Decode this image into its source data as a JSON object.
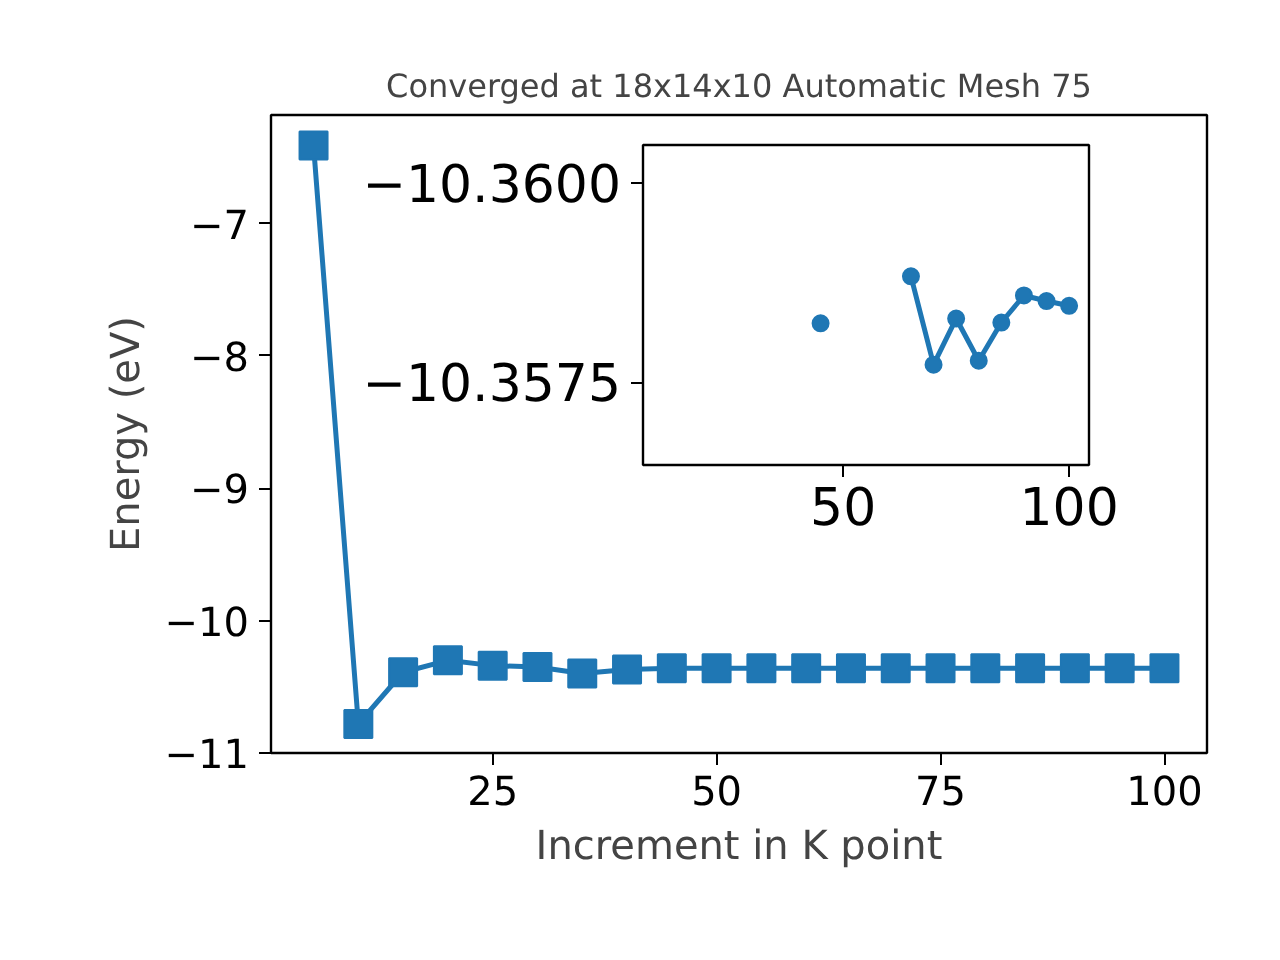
{
  "chart_data": [
    {
      "type": "line",
      "title": "Converged at 18x14x10 Automatic Mesh 75",
      "xlabel": "Increment in K point",
      "ylabel": "Energy (eV)",
      "x": [
        5,
        10,
        15,
        20,
        25,
        30,
        35,
        40,
        45,
        50,
        55,
        60,
        65,
        70,
        75,
        80,
        85,
        90,
        95,
        100
      ],
      "series": [
        {
          "color": "#1f77b4",
          "values": [
            -6.41,
            -10.78,
            -10.39,
            -10.3,
            -10.34,
            -10.35,
            -10.4,
            -10.37,
            -10.36,
            -10.36,
            -10.36,
            -10.36,
            -10.36,
            -10.36,
            -10.36,
            -10.36,
            -10.36,
            -10.36,
            -10.36,
            -10.36
          ]
        }
      ],
      "xlim": [
        0.25,
        104.75
      ],
      "ylim": [
        -11,
        -6.18
      ],
      "xticks": [
        25,
        50,
        75,
        100
      ],
      "yticks": [
        {
          "value": -11,
          "label": "−11"
        },
        {
          "value": -10,
          "label": "−10"
        },
        {
          "value": -9,
          "label": "−9"
        },
        {
          "value": -8,
          "label": "−8"
        },
        {
          "value": -7,
          "label": "−7"
        }
      ],
      "marker": "square",
      "line_style": "solid",
      "grid": false
    },
    {
      "type": "line",
      "x": [
        45,
        50,
        55,
        60,
        65,
        70,
        75,
        80,
        85,
        90,
        95,
        100
      ],
      "series": [
        {
          "color": "#1f77b4",
          "values": [
            -10.35824,
            null,
            null,
            null,
            -10.35883,
            -10.35772,
            -10.3583,
            -10.35777,
            -10.35825,
            -10.35859,
            -10.35852,
            -10.35846
          ]
        }
      ],
      "xlim": [
        5.7,
        104.4
      ],
      "ylim": [
        -10.35646,
        -10.36048
      ],
      "xticks": [
        50,
        100
      ],
      "yticks": [
        {
          "value": -10.36,
          "label": "−10.3600"
        },
        {
          "value": -10.3575,
          "label": "−10.3575"
        }
      ],
      "marker": "circle",
      "line_style": "solid",
      "grid": false
    }
  ]
}
